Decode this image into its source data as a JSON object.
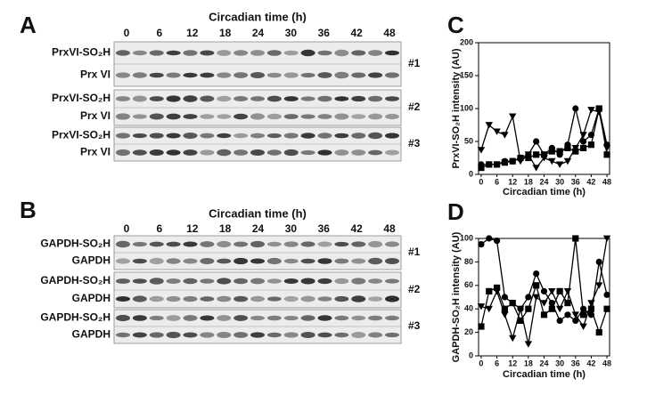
{
  "panels": [
    {
      "letter": "A",
      "title": "Circadian time (h)",
      "times": [
        0,
        6,
        12,
        18,
        24,
        30,
        36,
        42,
        48
      ],
      "groups": [
        {
          "replicate": "#1",
          "rows": [
            "PrxVI-SO₂H",
            "Prx VI"
          ]
        },
        {
          "replicate": "#2",
          "rows": [
            "PrxVI-SO₂H",
            "Prx VI"
          ]
        },
        {
          "replicate": "#3",
          "rows": [
            "PrxVI-SO₂H",
            "Prx VI"
          ]
        }
      ]
    },
    {
      "letter": "B",
      "title": "Circadian time (h)",
      "times": [
        0,
        6,
        12,
        18,
        24,
        30,
        36,
        42,
        48
      ],
      "groups": [
        {
          "replicate": "#1",
          "rows": [
            "GAPDH-SO₂H",
            "GAPDH"
          ]
        },
        {
          "replicate": "#2",
          "rows": [
            "GAPDH-SO₂H",
            "GAPDH"
          ]
        },
        {
          "replicate": "#3",
          "rows": [
            "GAPDH-SO₂H",
            "GAPDH"
          ]
        }
      ]
    }
  ],
  "chart_data": [
    {
      "type": "line",
      "panel": "C",
      "y_label": "PrxVI-SO₂H intensity (AU)",
      "x_label": "Circadian time (h)",
      "x": [
        0,
        3,
        6,
        9,
        12,
        15,
        18,
        21,
        24,
        27,
        30,
        33,
        36,
        39,
        42,
        45,
        48
      ],
      "xlim": [
        -1,
        49
      ],
      "xticks": [
        0,
        6,
        12,
        18,
        24,
        30,
        36,
        42,
        48
      ],
      "ylim": [
        0,
        200
      ],
      "yticks": [
        0,
        50,
        100,
        150,
        200
      ],
      "series": [
        {
          "marker": "circle",
          "color": "#000000",
          "values": [
            15,
            15,
            15,
            20,
            20,
            25,
            30,
            50,
            30,
            40,
            30,
            45,
            100,
            50,
            60,
            100,
            45
          ]
        },
        {
          "marker": "square",
          "color": "#000000",
          "values": [
            10,
            15,
            15,
            18,
            20,
            25,
            25,
            30,
            30,
            35,
            35,
            40,
            35,
            40,
            45,
            100,
            30
          ]
        },
        {
          "marker": "triangle-down",
          "color": "#000000",
          "values": [
            37,
            75,
            65,
            60,
            88,
            20,
            30,
            10,
            25,
            20,
            15,
            20,
            40,
            60,
            98,
            95,
            40
          ]
        }
      ]
    },
    {
      "type": "line",
      "panel": "D",
      "y_label": "GAPDH-SO₂H intensity (AU)",
      "x_label": "Circadian time (h)",
      "x": [
        0,
        3,
        6,
        9,
        12,
        15,
        18,
        21,
        24,
        27,
        30,
        33,
        36,
        39,
        42,
        45,
        48
      ],
      "xlim": [
        -1,
        49
      ],
      "xticks": [
        0,
        6,
        12,
        18,
        24,
        30,
        36,
        42,
        48
      ],
      "ylim": [
        0,
        100
      ],
      "yticks": [
        0,
        20,
        40,
        60,
        80,
        100
      ],
      "series": [
        {
          "marker": "circle",
          "color": "#000000",
          "values": [
            95,
            100,
            98,
            50,
            45,
            40,
            50,
            70,
            55,
            45,
            30,
            35,
            30,
            40,
            35,
            80,
            52
          ]
        },
        {
          "marker": "square",
          "color": "#000000",
          "values": [
            25,
            55,
            58,
            40,
            45,
            30,
            40,
            60,
            35,
            40,
            55,
            45,
            100,
            35,
            40,
            20,
            40
          ]
        },
        {
          "marker": "triangle-down",
          "color": "#000000",
          "values": [
            42,
            40,
            55,
            35,
            15,
            40,
            10,
            50,
            45,
            55,
            40,
            55,
            35,
            25,
            45,
            60,
            100
          ]
        }
      ]
    }
  ]
}
